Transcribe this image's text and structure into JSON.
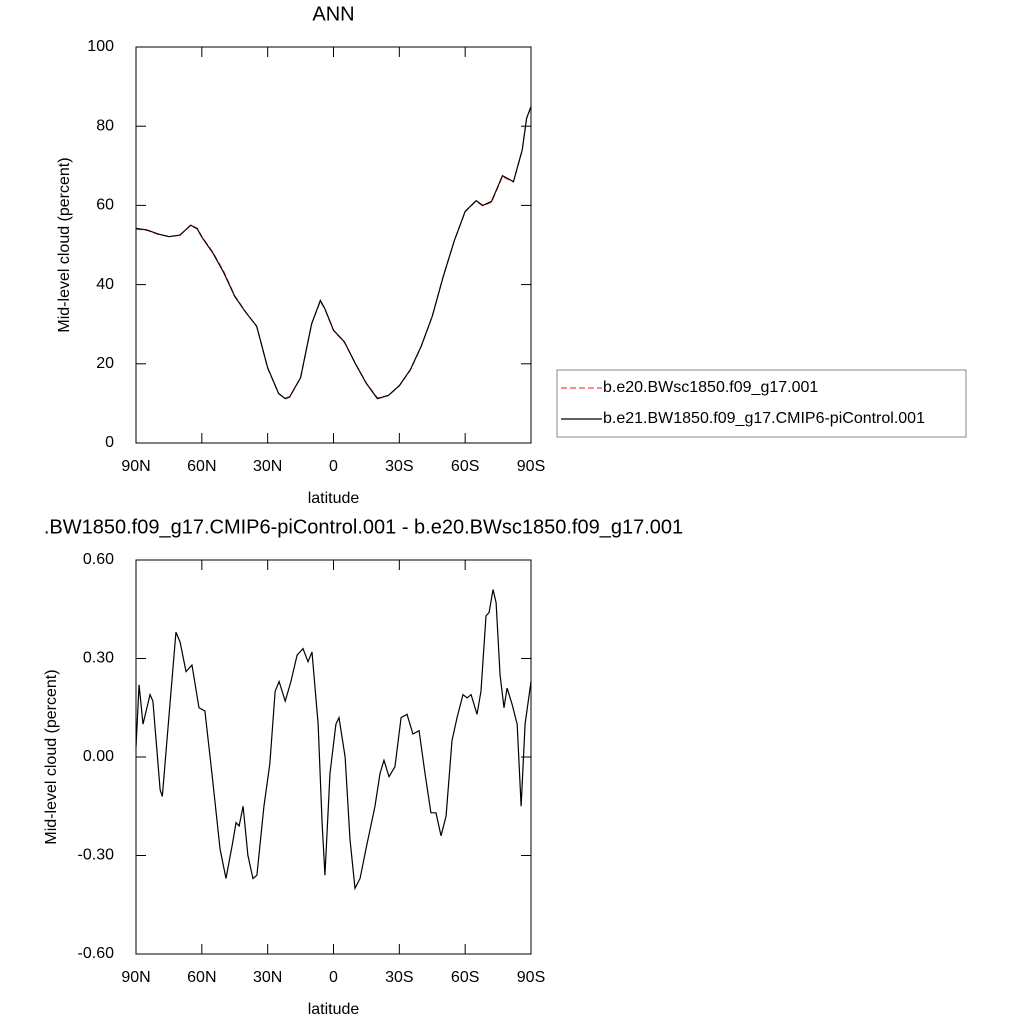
{
  "chart_data": [
    {
      "type": "line",
      "title": "ANN",
      "xlabel": "latitude",
      "ylabel": "Mid-level cloud (percent)",
      "x": [
        90,
        85,
        80,
        75,
        70,
        65,
        62,
        60,
        55,
        50,
        45,
        40,
        35,
        30,
        25,
        22,
        20,
        15,
        10,
        6,
        4,
        0,
        -5,
        -10,
        -15,
        -20,
        -25,
        -30,
        -35,
        -40,
        -45,
        -50,
        -55,
        -60,
        -65,
        -68,
        -72,
        -77,
        -82,
        -86,
        -88,
        -90
      ],
      "series": [
        {
          "name": "b.e20.BWsc1850.f09_g17.001",
          "color": "#ff4040",
          "dashed": true,
          "values": [
            54.0,
            53.7,
            52.7,
            52.2,
            52.4,
            55.1,
            54.2,
            52.1,
            48.2,
            43.3,
            37.2,
            33.1,
            29.4,
            18.9,
            12.4,
            11.3,
            11.7,
            16.4,
            30.1,
            35.8,
            33.9,
            28.4,
            25.4,
            20.1,
            15.1,
            11.4,
            12.0,
            14.4,
            18.4,
            24.4,
            32.0,
            42.1,
            51.0,
            58.4,
            61.1,
            59.9,
            60.8,
            67.3,
            65.9,
            74.0,
            82.0,
            84.8
          ]
        },
        {
          "name": "b.e21.BW1850.f09_g17.CMIP6-piControl.001",
          "color": "#000000",
          "dashed": false,
          "values": [
            54.2,
            53.8,
            52.8,
            52.1,
            52.5,
            55.0,
            54.0,
            52.0,
            48.0,
            43.0,
            37.0,
            33.0,
            29.5,
            19.0,
            12.5,
            11.2,
            11.6,
            16.5,
            30.0,
            36.0,
            34.0,
            28.5,
            25.5,
            20.0,
            15.0,
            11.2,
            12.0,
            14.5,
            18.5,
            24.5,
            32.0,
            42.0,
            51.0,
            58.5,
            61.2,
            60.0,
            61.0,
            67.5,
            66.0,
            74.0,
            82.0,
            85.0
          ]
        }
      ],
      "xlim": [
        90,
        -90
      ],
      "xticks": [
        {
          "value": 90,
          "label": "90N"
        },
        {
          "value": 60,
          "label": "60N"
        },
        {
          "value": 30,
          "label": "30N"
        },
        0,
        {
          "value": -30,
          "label": "30S"
        },
        {
          "value": -60,
          "label": "60S"
        },
        {
          "value": -90,
          "label": "90S"
        }
      ],
      "ylim": [
        0,
        100
      ],
      "yticks": [
        0,
        20,
        40,
        60,
        80,
        100
      ],
      "legend": "right"
    },
    {
      "type": "line",
      "title": ".BW1850.f09_g17.CMIP6-piControl.001 - b.e20.BWsc1850.f09_g17.001",
      "xlabel": "latitude",
      "ylabel": "Mid-level cloud (percent)",
      "x": [
        90,
        88.6,
        86.8,
        83.6,
        82.3,
        79,
        78,
        75.9,
        71.8,
        69.9,
        67.2,
        64.5,
        61.3,
        58.6,
        55.4,
        51.7,
        49,
        46.2,
        44.4,
        43,
        41.2,
        39,
        36.7,
        34.9,
        31.7,
        29,
        26.6,
        24.8,
        22,
        19.4,
        16.6,
        13.9,
        11.6,
        9.8,
        7,
        5.2,
        3.9,
        1.6,
        -1.1,
        -2.5,
        -5.3,
        -7.5,
        -9.8,
        -12.1,
        -14.8,
        -18.9,
        -21.2,
        -23,
        -25.3,
        -28,
        -30.8,
        -33.5,
        -36.2,
        -39,
        -41.7,
        -44.4,
        -46.7,
        -49,
        -51.3,
        -54,
        -56.3,
        -59,
        -60.9,
        -62.7,
        -65.4,
        -67.2,
        -69.5,
        -70.9,
        -72.7,
        -74.1,
        -75.9,
        -77.7,
        -79.1,
        -81.4,
        -83.7,
        -85.5,
        -87.3,
        -90
      ],
      "series": [
        {
          "name": "difference",
          "color": "#000000",
          "dashed": false,
          "values": [
            0.03,
            0.22,
            0.1,
            0.19,
            0.17,
            -0.1,
            -0.12,
            0.05,
            0.38,
            0.35,
            0.26,
            0.28,
            0.15,
            0.14,
            -0.05,
            -0.28,
            -0.37,
            -0.27,
            -0.2,
            -0.21,
            -0.15,
            -0.3,
            -0.37,
            -0.36,
            -0.15,
            -0.02,
            0.2,
            0.23,
            0.17,
            0.23,
            0.31,
            0.33,
            0.29,
            0.32,
            0.1,
            -0.2,
            -0.36,
            -0.05,
            0.1,
            0.12,
            0.0,
            -0.25,
            -0.4,
            -0.37,
            -0.28,
            -0.15,
            -0.05,
            -0.01,
            -0.06,
            -0.03,
            0.12,
            0.13,
            0.07,
            0.08,
            -0.05,
            -0.17,
            -0.17,
            -0.24,
            -0.18,
            0.05,
            0.12,
            0.19,
            0.18,
            0.19,
            0.13,
            0.2,
            0.43,
            0.44,
            0.51,
            0.47,
            0.25,
            0.15,
            0.21,
            0.16,
            0.1,
            -0.15,
            0.1,
            0.23
          ]
        }
      ],
      "xlim": [
        90,
        -90
      ],
      "xticks": [
        {
          "value": 90,
          "label": "90N"
        },
        {
          "value": 60,
          "label": "60N"
        },
        {
          "value": 30,
          "label": "30N"
        },
        0,
        {
          "value": -30,
          "label": "30S"
        },
        {
          "value": -60,
          "label": "60S"
        },
        {
          "value": -90,
          "label": "90S"
        }
      ],
      "ylim": [
        -0.6,
        0.6
      ],
      "yticks": [
        {
          "value": -0.6,
          "label": "-0.60"
        },
        {
          "value": -0.3,
          "label": "-0.30"
        },
        {
          "value": 0,
          "label": "0.00"
        },
        {
          "value": 0.3,
          "label": "0.30"
        },
        {
          "value": 0.6,
          "label": "0.60"
        }
      ]
    }
  ]
}
